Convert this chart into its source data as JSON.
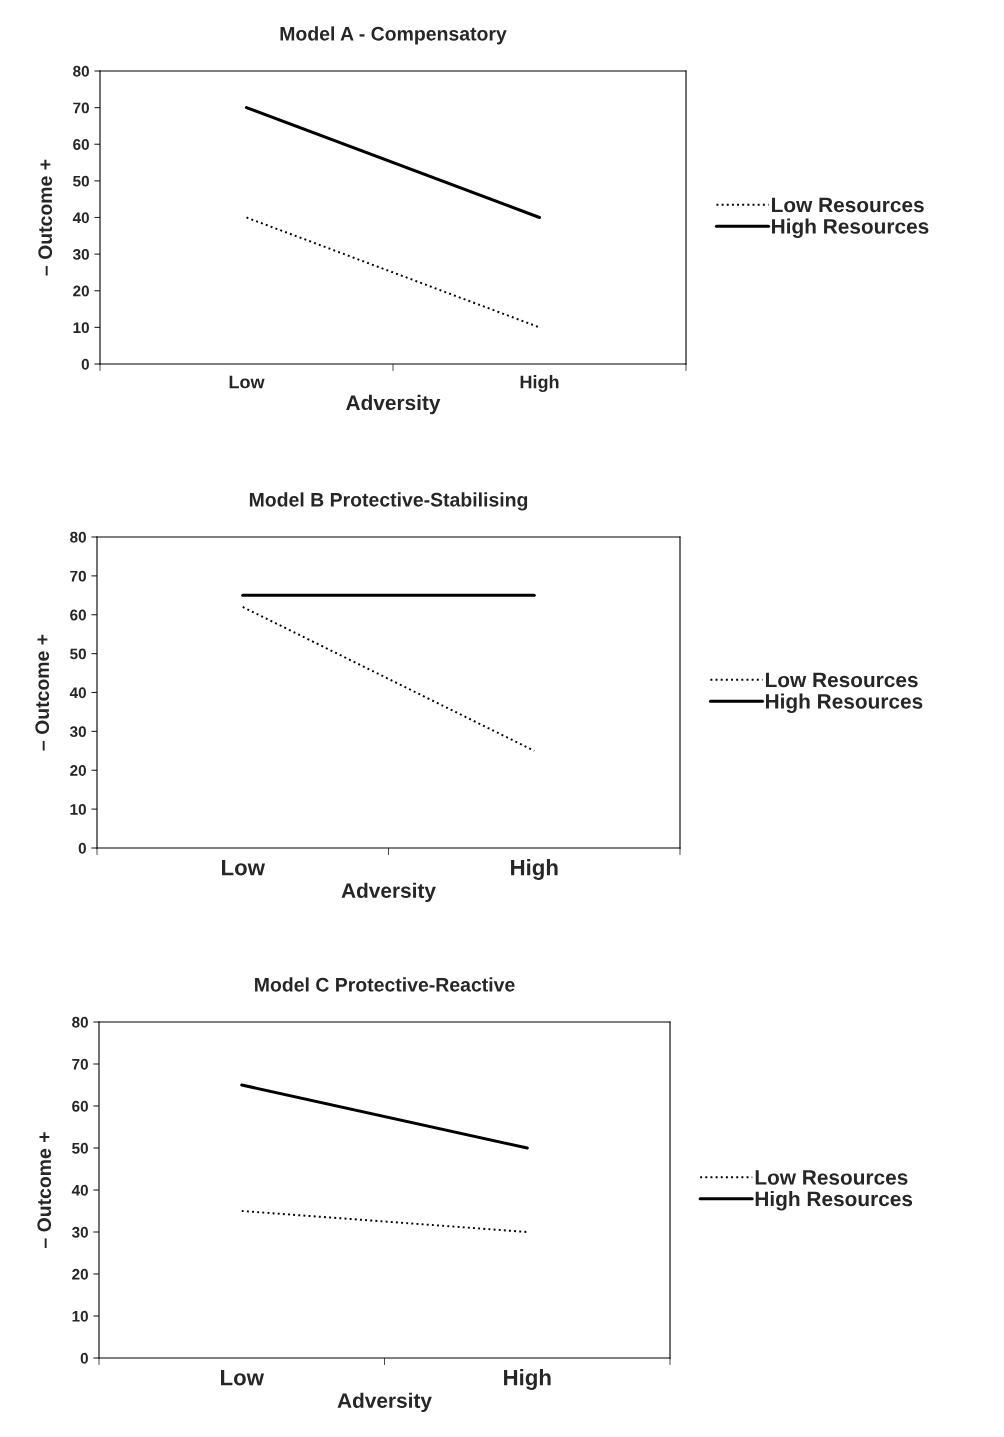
{
  "chart_data": [
    {
      "type": "line",
      "title": "Model A - Compensatory",
      "xlabel": "Adversity",
      "ylabel": "– Outcome +",
      "categories": [
        "Low",
        "High"
      ],
      "ylim": [
        0,
        80
      ],
      "yticks": [
        0,
        10,
        20,
        30,
        40,
        50,
        60,
        70,
        80
      ],
      "grid": false,
      "legend": "right",
      "series": [
        {
          "name": "Low Resources",
          "color": "#000000",
          "line_style": "dotted",
          "values": [
            40,
            10
          ]
        },
        {
          "name": "High Resources",
          "color": "#000000",
          "line_style": "solid",
          "values": [
            70,
            40
          ]
        }
      ]
    },
    {
      "type": "line",
      "title": "Model B Protective-Stabilising",
      "xlabel": "Adversity",
      "ylabel": "– Outcome +",
      "categories": [
        "Low",
        "High"
      ],
      "ylim": [
        0,
        80
      ],
      "yticks": [
        0,
        10,
        20,
        30,
        40,
        50,
        60,
        70,
        80
      ],
      "grid": false,
      "legend": "right",
      "series": [
        {
          "name": "Low Resources",
          "color": "#000000",
          "line_style": "dotted",
          "values": [
            62,
            25
          ]
        },
        {
          "name": "High Resources",
          "color": "#000000",
          "line_style": "solid",
          "values": [
            65,
            65
          ]
        }
      ]
    },
    {
      "type": "line",
      "title": "Model C Protective-Reactive",
      "xlabel": "Adversity",
      "ylabel": "– Outcome +",
      "categories": [
        "Low",
        "High"
      ],
      "ylim": [
        0,
        80
      ],
      "yticks": [
        0,
        10,
        20,
        30,
        40,
        50,
        60,
        70,
        80
      ],
      "grid": false,
      "legend": "right",
      "series": [
        {
          "name": "Low Resources",
          "color": "#000000",
          "line_style": "dotted",
          "values": [
            35,
            30
          ]
        },
        {
          "name": "High Resources",
          "color": "#000000",
          "line_style": "solid",
          "values": [
            65,
            50
          ]
        }
      ]
    }
  ]
}
